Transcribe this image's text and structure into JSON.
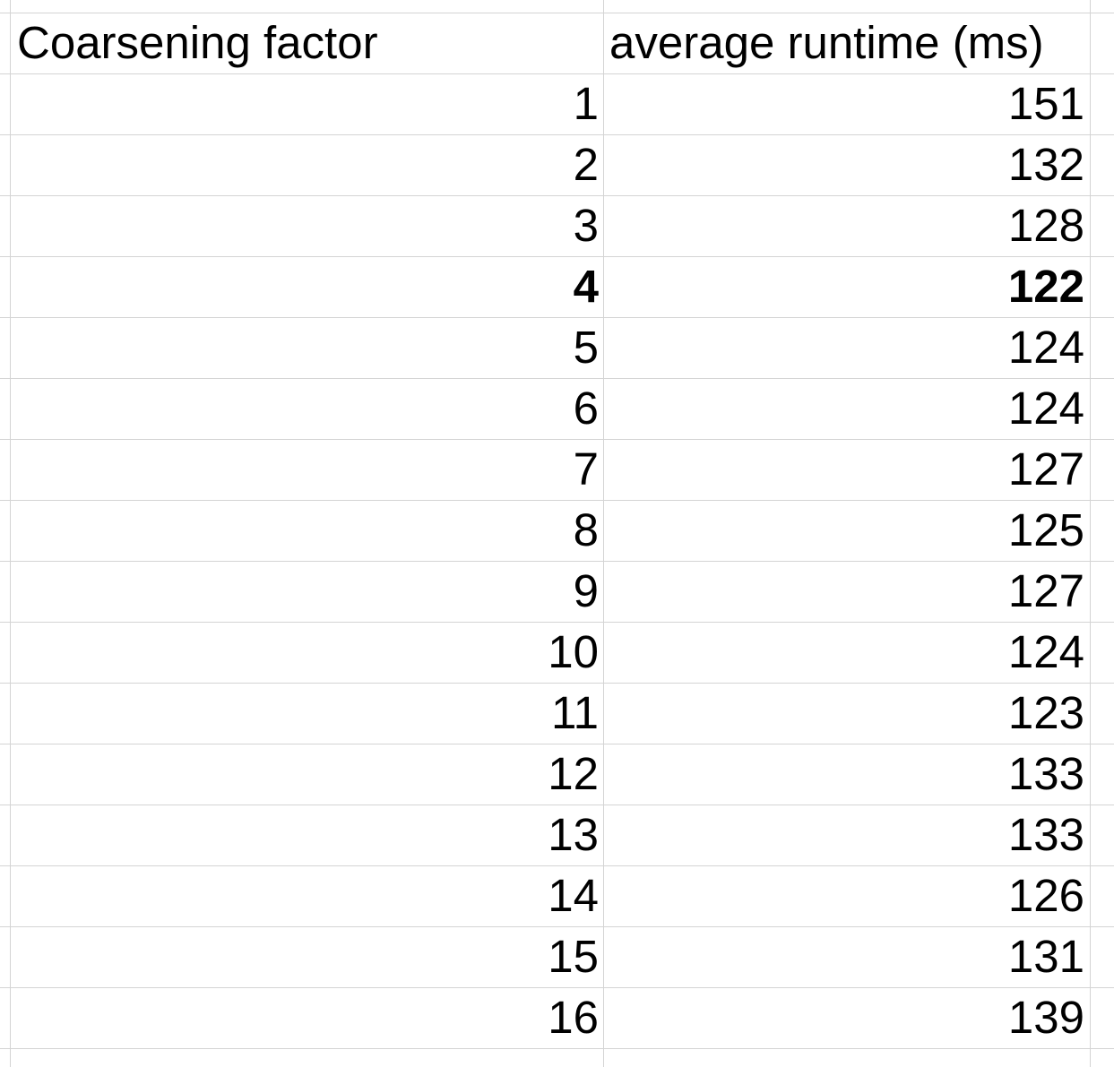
{
  "sheet": {
    "headers": {
      "col_a": "Coarsening factor",
      "col_b": "average runtime (ms)"
    },
    "rows": [
      {
        "factor": "1",
        "runtime": "151",
        "bold": false
      },
      {
        "factor": "2",
        "runtime": "132",
        "bold": false
      },
      {
        "factor": "3",
        "runtime": "128",
        "bold": false
      },
      {
        "factor": "4",
        "runtime": "122",
        "bold": true
      },
      {
        "factor": "5",
        "runtime": "124",
        "bold": false
      },
      {
        "factor": "6",
        "runtime": "124",
        "bold": false
      },
      {
        "factor": "7",
        "runtime": "127",
        "bold": false
      },
      {
        "factor": "8",
        "runtime": "125",
        "bold": false
      },
      {
        "factor": "9",
        "runtime": "127",
        "bold": false
      },
      {
        "factor": "10",
        "runtime": "124",
        "bold": false
      },
      {
        "factor": "11",
        "runtime": "123",
        "bold": false
      },
      {
        "factor": "12",
        "runtime": "133",
        "bold": false
      },
      {
        "factor": "13",
        "runtime": "133",
        "bold": false
      },
      {
        "factor": "14",
        "runtime": "126",
        "bold": false
      },
      {
        "factor": "15",
        "runtime": "131",
        "bold": false
      },
      {
        "factor": "16",
        "runtime": "139",
        "bold": false
      }
    ],
    "grid_color": "#d4d4d4"
  }
}
